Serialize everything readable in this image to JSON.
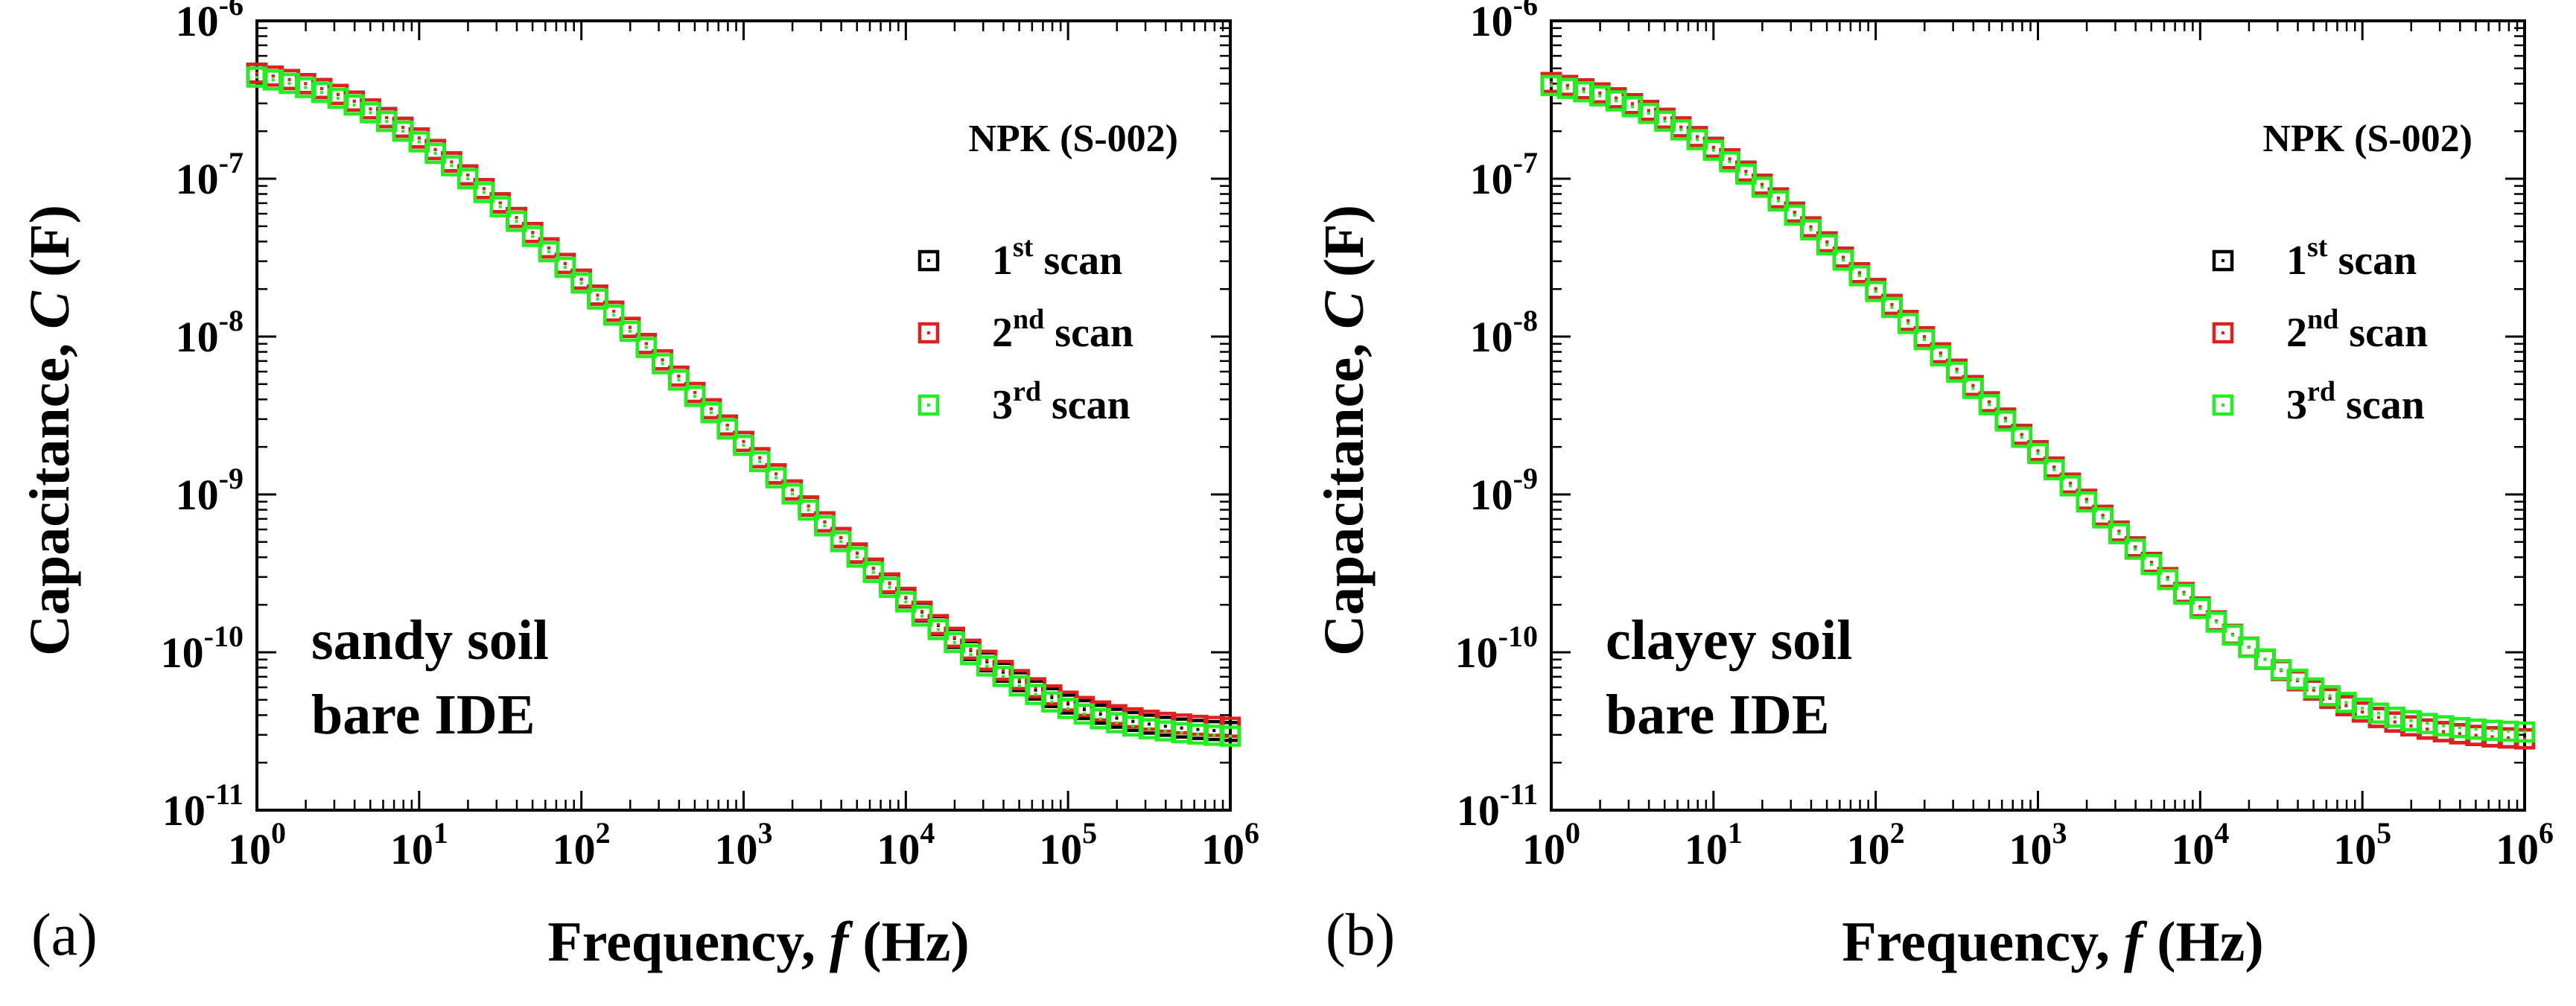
{
  "chart_data": [
    {
      "type": "scatter",
      "panel_label": "(a)",
      "annotation": "NPK (S-002)",
      "sample_lines": [
        "sandy soil",
        "bare IDE"
      ],
      "x_axis": {
        "base": "Frequency, ",
        "symbol": "f",
        "unit": " (Hz)",
        "scale": "log",
        "range": [
          1,
          1000000
        ]
      },
      "y_axis": {
        "base": "Capacitance, ",
        "symbol": "C",
        "unit": " (F)",
        "scale": "log",
        "range": [
          1e-11,
          1e-06
        ]
      },
      "x_ticks": [
        {
          "base": "10",
          "exp": "0"
        },
        {
          "base": "10",
          "exp": "1"
        },
        {
          "base": "10",
          "exp": "2"
        },
        {
          "base": "10",
          "exp": "3"
        },
        {
          "base": "10",
          "exp": "4"
        },
        {
          "base": "10",
          "exp": "5"
        },
        {
          "base": "10",
          "exp": "6"
        }
      ],
      "y_ticks": [
        {
          "base": "10",
          "exp": "-11"
        },
        {
          "base": "10",
          "exp": "-10"
        },
        {
          "base": "10",
          "exp": "-9"
        },
        {
          "base": "10",
          "exp": "-8"
        },
        {
          "base": "10",
          "exp": "-7"
        },
        {
          "base": "10",
          "exp": "-6"
        }
      ],
      "legend_position": "top-right",
      "series": [
        {
          "name": "1st scan",
          "legend": {
            "num": "1",
            "sup": "st",
            "rest": " scan"
          },
          "color": "#000000",
          "curve": {
            "c0": 3e-11,
            "a": 5.5e-07,
            "fc": 4200,
            "k": 1.0
          }
        },
        {
          "name": "2nd scan",
          "legend": {
            "num": "2",
            "sup": "nd",
            "rest": " scan"
          },
          "color": "#e02020",
          "curve": {
            "c0": 3.2e-11,
            "a": 5.5e-07,
            "fc": 4300,
            "k": 1.0
          }
        },
        {
          "name": "3rd scan",
          "legend": {
            "num": "3",
            "sup": "rd",
            "rest": " scan"
          },
          "color": "#22ee22",
          "curve": {
            "c0": 2.8e-11,
            "a": 5.2e-07,
            "fc": 4100,
            "k": 1.0
          }
        }
      ],
      "points_per_decade": 10
    },
    {
      "type": "scatter",
      "panel_label": "(b)",
      "annotation": "NPK (S-002)",
      "sample_lines": [
        "clayey soil",
        "bare IDE"
      ],
      "x_axis": {
        "base": "Frequency, ",
        "symbol": "f",
        "unit": " (Hz)",
        "scale": "log",
        "range": [
          1,
          1000000
        ]
      },
      "y_axis": {
        "base": "Capacitance, ",
        "symbol": "C",
        "unit": " (F)",
        "scale": "log",
        "range": [
          1e-11,
          1e-06
        ]
      },
      "x_ticks": [
        {
          "base": "10",
          "exp": "0"
        },
        {
          "base": "10",
          "exp": "1"
        },
        {
          "base": "10",
          "exp": "2"
        },
        {
          "base": "10",
          "exp": "3"
        },
        {
          "base": "10",
          "exp": "4"
        },
        {
          "base": "10",
          "exp": "5"
        },
        {
          "base": "10",
          "exp": "6"
        }
      ],
      "y_ticks": [
        {
          "base": "10",
          "exp": "-11"
        },
        {
          "base": "10",
          "exp": "-10"
        },
        {
          "base": "10",
          "exp": "-9"
        },
        {
          "base": "10",
          "exp": "-8"
        },
        {
          "base": "10",
          "exp": "-7"
        },
        {
          "base": "10",
          "exp": "-6"
        }
      ],
      "legend_position": "top-right",
      "series": [
        {
          "name": "1st scan",
          "legend": {
            "num": "1",
            "sup": "st",
            "rest": " scan"
          },
          "color": "#000000",
          "curve": {
            "c0": 2.7e-11,
            "a": 4.8e-07,
            "fc": 4000,
            "k": 1.0
          }
        },
        {
          "name": "2nd scan",
          "legend": {
            "num": "2",
            "sup": "nd",
            "rest": " scan"
          },
          "color": "#e02020",
          "curve": {
            "c0": 2.7e-11,
            "a": 4.8e-07,
            "fc": 4000,
            "k": 1.0
          }
        },
        {
          "name": "3rd scan",
          "legend": {
            "num": "3",
            "sup": "rd",
            "rest": " scan"
          },
          "color": "#22ee22",
          "curve": {
            "c0": 3e-11,
            "a": 4.6e-07,
            "fc": 3900,
            "k": 1.0
          }
        }
      ],
      "points_per_decade": 10
    }
  ]
}
